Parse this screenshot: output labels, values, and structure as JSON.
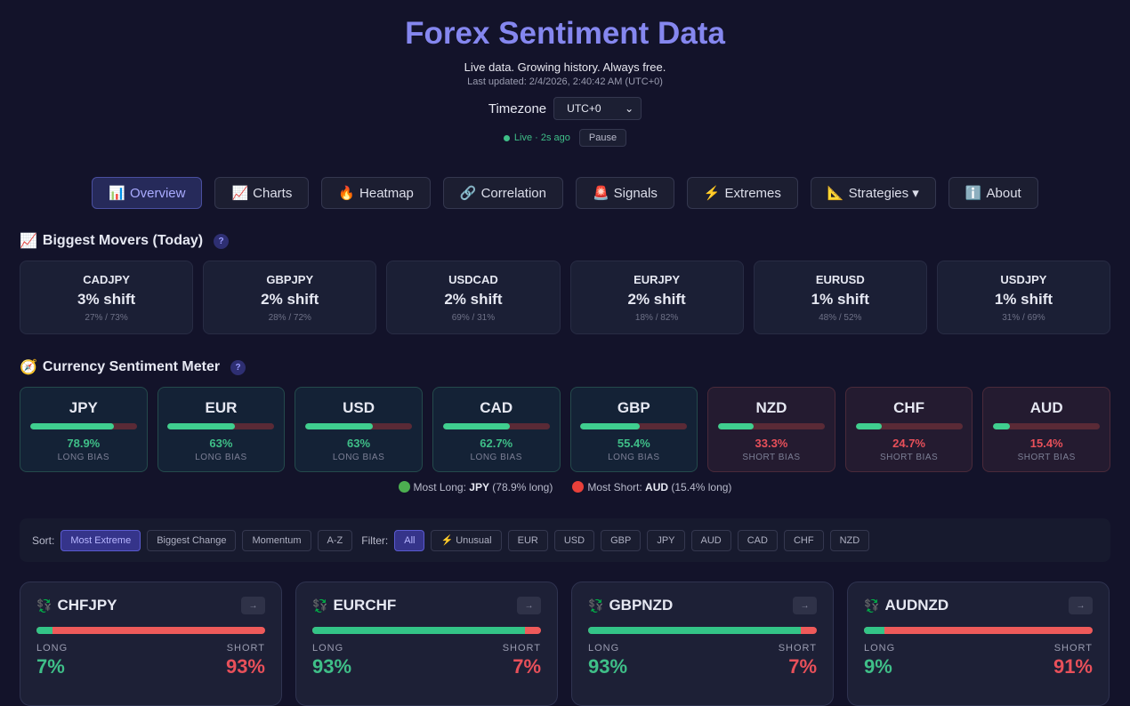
{
  "header": {
    "title": "Forex Sentiment Data",
    "tagline": "Live data. Growing history. Always free.",
    "last_updated": "Last updated: 2/4/2026, 2:40:42 AM (UTC+0)",
    "timezone_label": "Timezone",
    "timezone_value": "UTC+0",
    "live_text": "Live · 2s ago",
    "pause_label": "Pause"
  },
  "nav": [
    {
      "icon": "📊",
      "label": "Overview",
      "active": true
    },
    {
      "icon": "📈",
      "label": "Charts"
    },
    {
      "icon": "🔥",
      "label": "Heatmap"
    },
    {
      "icon": "🔗",
      "label": "Correlation"
    },
    {
      "icon": "🚨",
      "label": "Signals"
    },
    {
      "icon": "⚡",
      "label": "Extremes"
    },
    {
      "icon": "📐",
      "label": "Strategies ▾"
    },
    {
      "icon": "ℹ️",
      "label": "About"
    }
  ],
  "movers": {
    "icon": "📈",
    "title": "Biggest Movers (Today)",
    "help": "?",
    "items": [
      {
        "pair": "CADJPY",
        "shift": "3% shift",
        "ratio": "27% / 73%"
      },
      {
        "pair": "GBPJPY",
        "shift": "2% shift",
        "ratio": "28% / 72%"
      },
      {
        "pair": "USDCAD",
        "shift": "2% shift",
        "ratio": "69% / 31%"
      },
      {
        "pair": "EURJPY",
        "shift": "2% shift",
        "ratio": "18% / 82%"
      },
      {
        "pair": "EURUSD",
        "shift": "1% shift",
        "ratio": "48% / 52%"
      },
      {
        "pair": "USDJPY",
        "shift": "1% shift",
        "ratio": "31% / 69%"
      }
    ]
  },
  "meter": {
    "icon": "🧭",
    "title": "Currency Sentiment Meter",
    "help": "?",
    "items": [
      {
        "currency": "JPY",
        "long_pct": 78.9,
        "value": "78.9%",
        "bias": "LONG BIAS"
      },
      {
        "currency": "EUR",
        "long_pct": 63,
        "value": "63%",
        "bias": "LONG BIAS"
      },
      {
        "currency": "USD",
        "long_pct": 63,
        "value": "63%",
        "bias": "LONG BIAS"
      },
      {
        "currency": "CAD",
        "long_pct": 62.7,
        "value": "62.7%",
        "bias": "LONG BIAS"
      },
      {
        "currency": "GBP",
        "long_pct": 55.4,
        "value": "55.4%",
        "bias": "LONG BIAS"
      },
      {
        "currency": "NZD",
        "long_pct": 33.3,
        "value": "33.3%",
        "bias": "SHORT BIAS"
      },
      {
        "currency": "CHF",
        "long_pct": 24.7,
        "value": "24.7%",
        "bias": "SHORT BIAS"
      },
      {
        "currency": "AUD",
        "long_pct": 15.4,
        "value": "15.4%",
        "bias": "SHORT BIAS"
      }
    ],
    "most_long_label": "Most Long:",
    "most_long_currency": "JPY",
    "most_long_detail": "(78.9% long)",
    "most_short_label": "Most Short:",
    "most_short_currency": "AUD",
    "most_short_detail": "(15.4% long)"
  },
  "filters": {
    "sort_label": "Sort:",
    "sort_options": [
      "Most Extreme",
      "Biggest Change",
      "Momentum",
      "A-Z"
    ],
    "sort_active": "Most Extreme",
    "filter_label": "Filter:",
    "filter_options": [
      "All",
      "⚡ Unusual",
      "EUR",
      "USD",
      "GBP",
      "JPY",
      "AUD",
      "CAD",
      "CHF",
      "NZD"
    ],
    "filter_active": "All"
  },
  "pairs": [
    {
      "pair": "CHFJPY",
      "long_label": "LONG",
      "short_label": "SHORT",
      "long": 7,
      "short": 93,
      "long_text": "7%",
      "short_text": "93%",
      "arrow": "→"
    },
    {
      "pair": "EURCHF",
      "long_label": "LONG",
      "short_label": "SHORT",
      "long": 93,
      "short": 7,
      "long_text": "93%",
      "short_text": "7%",
      "arrow": "→"
    },
    {
      "pair": "GBPNZD",
      "long_label": "LONG",
      "short_label": "SHORT",
      "long": 93,
      "short": 7,
      "long_text": "93%",
      "short_text": "7%",
      "arrow": "→"
    },
    {
      "pair": "AUDNZD",
      "long_label": "LONG",
      "short_label": "SHORT",
      "long": 9,
      "short": 91,
      "long_text": "9%",
      "short_text": "91%",
      "arrow": "→"
    }
  ],
  "colors": {
    "accent": "#8587ef",
    "long": "#3fbf88",
    "short": "#e8505a",
    "background": "#13132a"
  }
}
